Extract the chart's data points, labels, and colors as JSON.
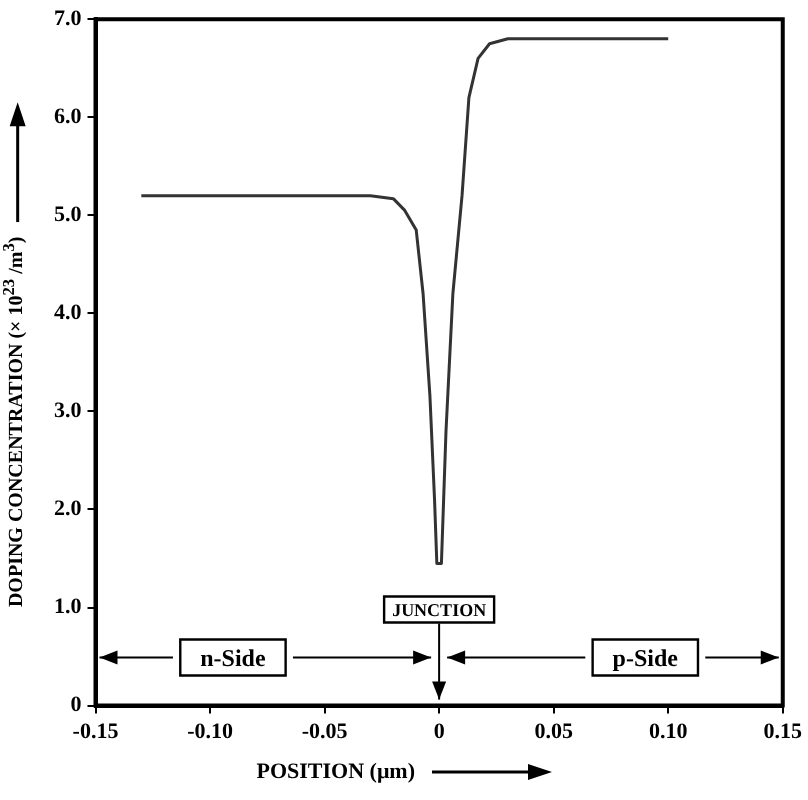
{
  "chart_data": {
    "type": "line",
    "xlabel": "POSITION (μm)",
    "ylabel": "DOPING CONCENTRATION (× 10$^{23}$ /m$^{3}$)",
    "x": [
      -0.13,
      -0.03,
      -0.02,
      -0.015,
      -0.01,
      -0.007,
      -0.004,
      -0.002,
      -0.001,
      0.001,
      0.003,
      0.006,
      0.01,
      0.013,
      0.017,
      0.022,
      0.03,
      0.1
    ],
    "series": [
      {
        "color": "#333333",
        "values": [
          5.2,
          5.2,
          5.17,
          5.05,
          4.85,
          4.2,
          3.15,
          2.1,
          1.45,
          1.45,
          2.8,
          4.2,
          5.2,
          6.2,
          6.6,
          6.75,
          6.8,
          6.8
        ]
      }
    ],
    "xlim": [
      -0.15,
      0.15
    ],
    "xticks": [
      {
        "value": -0.15,
        "label": "-0.15"
      },
      {
        "value": -0.1,
        "label": "-0.10"
      },
      {
        "value": -0.05,
        "label": "-0.05"
      },
      0,
      {
        "value": 0.05,
        "label": "0.05"
      },
      {
        "value": 0.1,
        "label": "0.10"
      },
      {
        "value": 0.15,
        "label": "0.15"
      }
    ],
    "ylim": [
      0,
      7
    ],
    "yticks": [
      0,
      {
        "value": 1,
        "label": "1.0"
      },
      {
        "value": 2,
        "label": "2.0"
      },
      {
        "value": 3,
        "label": "3.0"
      },
      {
        "value": 4,
        "label": "4.0"
      },
      {
        "value": 5,
        "label": "5.0"
      },
      {
        "value": 6,
        "label": "6.0"
      },
      {
        "value": 7,
        "label": "7.0"
      }
    ],
    "annotations": [
      "n-Side",
      "JUNCTION",
      "p-Side"
    ],
    "grid": false,
    "legend": false,
    "marker": "none",
    "line_style": "solid"
  }
}
